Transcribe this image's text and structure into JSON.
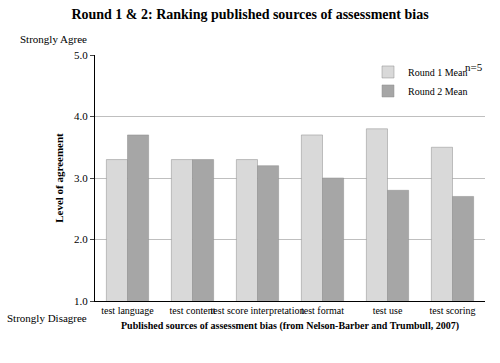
{
  "chart_data": {
    "type": "bar",
    "title": "Round 1 & 2: Ranking published sources of assessment bias",
    "x_label": "Published sources of assessment bias (from Nelson-Barber and Trumbull, 2007)",
    "y_label": "Level of agreement",
    "categories": [
      "test language",
      "test content",
      "test score interpretation",
      "test format",
      "test use",
      "test scoring"
    ],
    "series": [
      {
        "name": "Round 1 Mean",
        "color": "#d9d9d9",
        "values": [
          3.3,
          3.3,
          3.3,
          3.7,
          3.8,
          3.5
        ]
      },
      {
        "name": "Round 2 Mean",
        "color": "#a6a6a6",
        "values": [
          3.7,
          3.3,
          3.2,
          3.0,
          2.8,
          2.7
        ]
      }
    ],
    "ylim": [
      1,
      5
    ],
    "yticks": [
      {
        "value": 1,
        "label": "1.0"
      },
      {
        "value": 2,
        "label": "2.0"
      },
      {
        "value": 3,
        "label": "3.0"
      },
      {
        "value": 4,
        "label": "4.0"
      },
      {
        "value": 5,
        "label": "5.0"
      }
    ],
    "grid": true,
    "legend": "top-right",
    "annotations": [
      "Strongly Agree",
      "Strongly Disagree",
      "n=5"
    ]
  }
}
